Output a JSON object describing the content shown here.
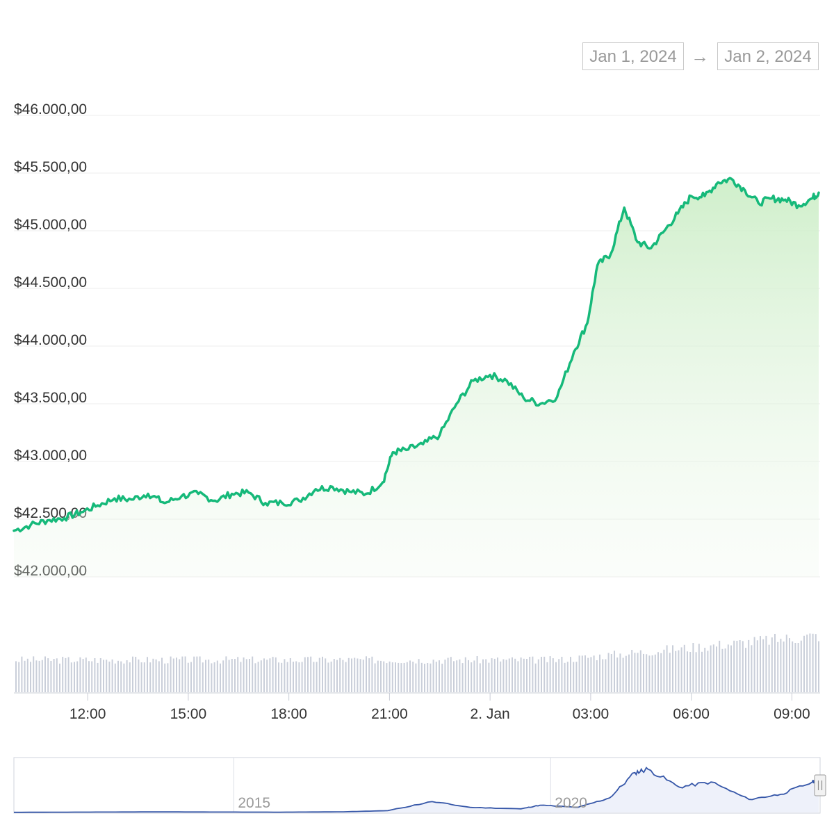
{
  "range_selector": {
    "from": "Jan 1, 2024",
    "arrow": "→",
    "to": "Jan 2, 2024"
  },
  "colors": {
    "price_line": "#16b97a",
    "area_top": "#d4efcf",
    "volume_bar": "#c9ced9",
    "navigator_line": "#3556a8",
    "grid": "#ececec"
  },
  "chart_data": [
    {
      "type": "line",
      "title": "",
      "xlabel": "",
      "ylabel": "",
      "x_ticks": [
        "12:00",
        "15:00",
        "18:00",
        "21:00",
        "2. Jan",
        "03:00",
        "06:00",
        "09:00"
      ],
      "y_ticks": [
        "$42.000,00",
        "$42.500,00",
        "$43.000,00",
        "$43.500,00",
        "$44.000,00",
        "$44.500,00",
        "$45.000,00",
        "$45.500,00",
        "$46.000,00"
      ],
      "ylim": [
        42000,
        46000
      ],
      "x_range_hours": [
        9.8,
        33.8
      ],
      "grid": true,
      "series": [
        {
          "x_hours": [
            9.8,
            10.3,
            10.8,
            11.3,
            11.8,
            12.3,
            12.8,
            13.3,
            13.8,
            14.3,
            14.8,
            15.3,
            15.8,
            16.3,
            16.8,
            17.3,
            17.8,
            18.3,
            18.8,
            19.3,
            19.8,
            20.3,
            20.8,
            21.1,
            21.5,
            22.0,
            22.5,
            23.0,
            23.5,
            24.0,
            24.5,
            25.0,
            25.5,
            26.0,
            26.5,
            26.9,
            27.2,
            27.6,
            28.0,
            28.4,
            28.8,
            29.2,
            29.6,
            30.0,
            30.4,
            30.8,
            31.2,
            31.6,
            32.0,
            32.4,
            32.8,
            33.2,
            33.6,
            33.8
          ],
          "values": [
            42400,
            42450,
            42490,
            42510,
            42560,
            42620,
            42680,
            42670,
            42720,
            42640,
            42700,
            42720,
            42660,
            42720,
            42730,
            42640,
            42640,
            42660,
            42760,
            42780,
            42740,
            42720,
            42820,
            43080,
            43100,
            43150,
            43230,
            43500,
            43700,
            43750,
            43700,
            43550,
            43500,
            43560,
            43950,
            44200,
            44700,
            44800,
            45200,
            44900,
            44850,
            45000,
            45150,
            45300,
            45300,
            45420,
            45450,
            45350,
            45240,
            45280,
            45270,
            45220,
            45280,
            45330
          ]
        }
      ]
    },
    {
      "type": "bar",
      "title": "volume",
      "xlabel": "",
      "ylabel": "",
      "trend": "roughly flat from 9:48 to 02:00, then rising steadily toward 09:48"
    },
    {
      "type": "area",
      "title": "navigator",
      "x_ticks": [
        "2015",
        "2020"
      ],
      "x_years": [
        2011.3,
        2012.5,
        2013.5,
        2014.5,
        2015.5,
        2016.5,
        2017.2,
        2017.9,
        2018.5,
        2019.3,
        2019.6,
        2020.2,
        2020.7,
        2021.1,
        2021.3,
        2021.8,
        2022.3,
        2022.9,
        2023.4,
        2023.9,
        2024.0
      ],
      "values": [
        200,
        500,
        800,
        600,
        400,
        900,
        2500,
        15000,
        7000,
        5000,
        10000,
        7000,
        20000,
        55000,
        60000,
        35000,
        42000,
        18000,
        25000,
        42000,
        45000
      ],
      "ylim": [
        0,
        70000
      ]
    }
  ]
}
